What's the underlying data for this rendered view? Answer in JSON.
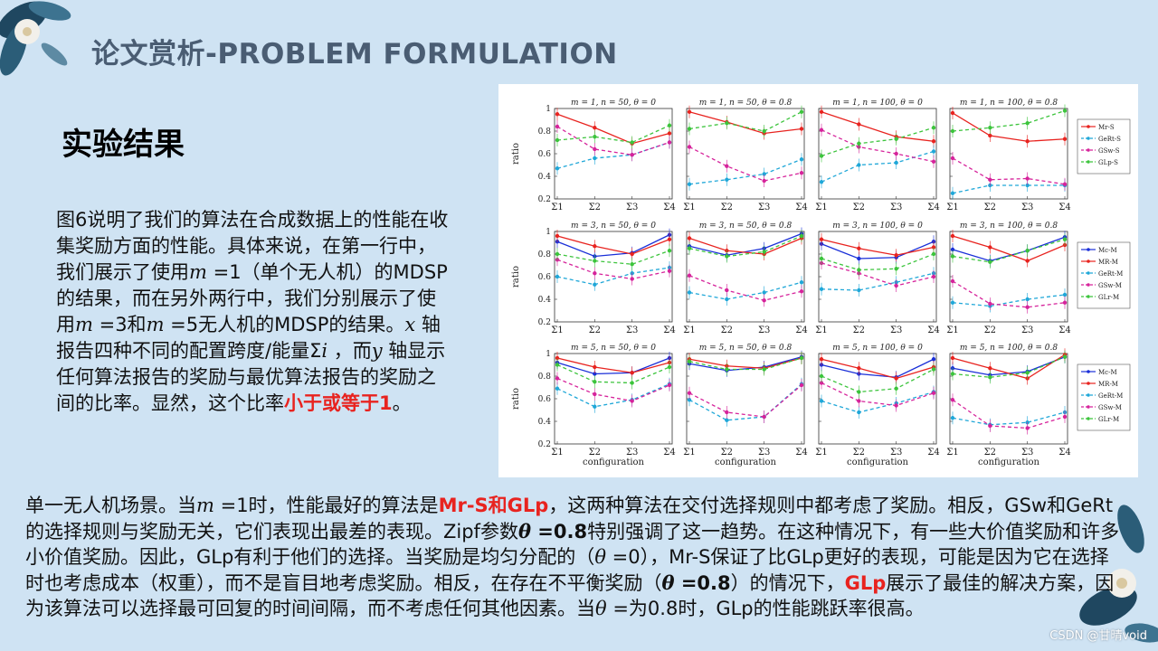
{
  "header": {
    "title": "论文赏析-PROBLEM FORMULATION"
  },
  "section": {
    "subtitle": "实验结果"
  },
  "left_paragraph": {
    "p1": "图6说明了我们的算法在合成数据上的性能在收集奖励方面的性能。具体来说，在第一行中，我们展示了使用",
    "m1": "m",
    "p2": " =1（单个无人机）的MDSP的结果，而在另外两行中，我们分别展示了使用",
    "m2": "m",
    "p3": " =3和",
    "m3": "m",
    "p4": " =5无人机的MDSP的结果。",
    "x_var": "x",
    "p5": " 轴报告四种不同的配置跨度/能量Σ",
    "i_var": "i",
    "p6": "  ，而",
    "y_var": "y",
    "p7": " 轴显示任何算法报告的奖励与最优算法报告的奖励之间的比率。显然，这个比率",
    "highlight": "小于或等于1",
    "p8": "。"
  },
  "bottom_paragraph": {
    "s1": "单一无人机场景。当",
    "m": "m",
    "s2": " =1时，性能最好的算法是",
    "h1": "Mr-S和GLp",
    "s3": "，这两种算法在交付选择规则中都考虑了奖励。相反，GSw和GeRt的选择规则与奖励无关，它们表现出最差的表现。Zipf参数",
    "theta1": "θ",
    "b1": " =0.8",
    "s4": "特别强调了这一趋势。在这种情况下，有一些大价值奖励和许多小价值奖励。因此，GLp有利于他们的选择。当奖励是均匀分配的（",
    "theta2": "θ",
    "s5": " =0），Mr-S保证了比GLp更好的表现，可能是因为它在选择时也考虑成本（权重），而不是盲目地考虑奖励。相反，在存在不平衡奖励（",
    "theta3": "θ",
    "b2": " =0.8",
    "s6": "）的情况下，",
    "h2": "GLp",
    "s7": "展示了最佳的解决方案，因为该算法可以选择最可回复的时间间隔，而不考虑任何其他因素。当",
    "theta4": "θ",
    "s8": " =为0.8时，GLp的性能跳跃率很高。"
  },
  "watermark": "CSDN @甘晴void",
  "colors": {
    "title": "#4a5d73",
    "highlight": "#e8231f",
    "background": "#cfe3f3"
  },
  "figure": {
    "titles": [
      [
        "m = 1, n = 50, θ = 0",
        "m = 1, n = 50, θ = 0.8",
        "m = 1, n = 100, θ = 0",
        "m = 1, n = 100, θ = 0.8"
      ],
      [
        "m = 3, n = 50, θ = 0",
        "m = 3, n = 50, θ = 0.8",
        "m = 3, n = 100, θ = 0",
        "m = 3, n = 100, θ = 0.8"
      ],
      [
        "m = 5, n = 50, θ = 0",
        "m = 5, n = 50, θ = 0.8",
        "m = 5, n = 100, θ = 0",
        "m = 5, n = 100, θ = 0.8"
      ]
    ],
    "ylabel": "ratio",
    "xlabel": "configuration",
    "xticks": [
      "Σ1",
      "Σ2",
      "Σ3",
      "Σ4"
    ],
    "yticks": [
      "0.2",
      "0.4",
      "0.6",
      "0.8",
      "1"
    ],
    "legends": [
      [
        "Mr-S",
        "GeRt-S",
        "GSw-S",
        "GLp-S"
      ],
      [
        "Mc-M",
        "MR-M",
        "GeRt-M",
        "GSw-M",
        "GLr-M"
      ],
      [
        "Mc-M",
        "MR-M",
        "GeRt-M",
        "GSw-M",
        "GLr-M"
      ]
    ],
    "series_colors": {
      "row1": [
        "#e8231f",
        "#1fa7d8",
        "#d6239b",
        "#3cc43c"
      ],
      "row23": [
        "#1a2fd8",
        "#e8231f",
        "#1fa7d8",
        "#d6239b",
        "#3cc43c"
      ]
    },
    "data": [
      [
        [
          [
            0.95,
            0.83,
            0.69,
            0.78
          ],
          [
            0.47,
            0.56,
            0.59,
            0.7
          ],
          [
            0.84,
            0.64,
            0.59,
            0.7
          ],
          [
            0.72,
            0.75,
            0.7,
            0.85
          ]
        ],
        [
          [
            0.97,
            0.88,
            0.78,
            0.82
          ],
          [
            0.33,
            0.37,
            0.42,
            0.55
          ],
          [
            0.66,
            0.49,
            0.36,
            0.43
          ],
          [
            0.82,
            0.87,
            0.8,
            0.97
          ]
        ],
        [
          [
            0.97,
            0.86,
            0.75,
            0.71
          ],
          [
            0.35,
            0.5,
            0.52,
            0.62
          ],
          [
            0.81,
            0.66,
            0.6,
            0.53
          ],
          [
            0.58,
            0.69,
            0.73,
            0.83
          ]
        ],
        [
          [
            0.96,
            0.76,
            0.71,
            0.73
          ],
          [
            0.25,
            0.32,
            0.32,
            0.32
          ],
          [
            0.56,
            0.37,
            0.38,
            0.33
          ],
          [
            0.8,
            0.83,
            0.87,
            0.98
          ]
        ]
      ],
      [
        [
          [
            0.91,
            0.78,
            0.81,
            0.97
          ],
          [
            0.96,
            0.87,
            0.8,
            0.93
          ],
          [
            0.6,
            0.53,
            0.63,
            0.68
          ],
          [
            0.75,
            0.63,
            0.58,
            0.65
          ],
          [
            0.8,
            0.74,
            0.71,
            0.83
          ]
        ],
        [
          [
            0.87,
            0.79,
            0.85,
            0.98
          ],
          [
            0.94,
            0.83,
            0.8,
            0.94
          ],
          [
            0.46,
            0.4,
            0.46,
            0.55
          ],
          [
            0.61,
            0.48,
            0.39,
            0.47
          ],
          [
            0.85,
            0.78,
            0.82,
            0.96
          ]
        ],
        [
          [
            0.89,
            0.76,
            0.77,
            0.91
          ],
          [
            0.93,
            0.85,
            0.79,
            0.86
          ],
          [
            0.49,
            0.48,
            0.55,
            0.63
          ],
          [
            0.72,
            0.63,
            0.52,
            0.6
          ],
          [
            0.76,
            0.66,
            0.67,
            0.8
          ]
        ],
        [
          [
            0.84,
            0.74,
            0.83,
            0.95
          ],
          [
            0.96,
            0.86,
            0.74,
            0.88
          ],
          [
            0.37,
            0.34,
            0.4,
            0.44
          ],
          [
            0.56,
            0.36,
            0.33,
            0.37
          ],
          [
            0.78,
            0.73,
            0.83,
            0.93
          ]
        ]
      ],
      [
        [
          [
            0.92,
            0.82,
            0.83,
            0.96
          ],
          [
            0.96,
            0.88,
            0.83,
            0.92
          ],
          [
            0.69,
            0.53,
            0.59,
            0.73
          ],
          [
            0.78,
            0.64,
            0.58,
            0.72
          ],
          [
            0.9,
            0.75,
            0.74,
            0.88
          ]
        ],
        [
          [
            0.91,
            0.85,
            0.88,
            0.97
          ],
          [
            0.95,
            0.89,
            0.87,
            0.96
          ],
          [
            0.59,
            0.41,
            0.44,
            0.73
          ],
          [
            0.65,
            0.48,
            0.44,
            0.72
          ],
          [
            0.93,
            0.86,
            0.86,
            0.96
          ]
        ],
        [
          [
            0.9,
            0.82,
            0.79,
            0.95
          ],
          [
            0.95,
            0.87,
            0.78,
            0.88
          ],
          [
            0.58,
            0.48,
            0.56,
            0.66
          ],
          [
            0.74,
            0.58,
            0.54,
            0.65
          ],
          [
            0.8,
            0.66,
            0.69,
            0.86
          ]
        ],
        [
          [
            0.87,
            0.81,
            0.84,
            0.97
          ],
          [
            0.96,
            0.87,
            0.78,
            0.99
          ],
          [
            0.43,
            0.37,
            0.39,
            0.48
          ],
          [
            0.59,
            0.36,
            0.34,
            0.44
          ],
          [
            0.82,
            0.79,
            0.83,
            0.97
          ]
        ]
      ]
    ]
  }
}
